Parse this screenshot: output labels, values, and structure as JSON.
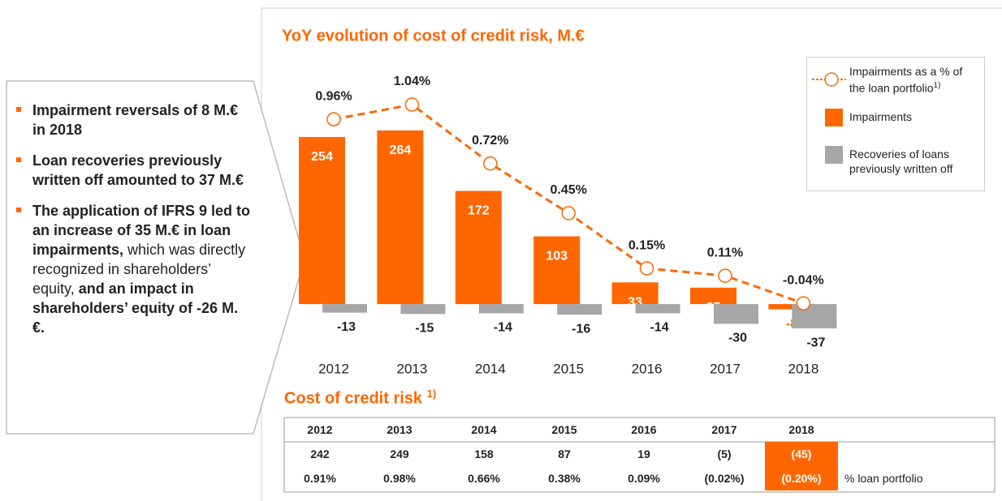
{
  "callout": {
    "bullets": [
      [
        {
          "text": "Impairment reversals of 8 M.€ in 2018",
          "bold": true
        }
      ],
      [
        {
          "text": "Loan recoveries previously written off amounted to 37 M.€",
          "bold": true
        }
      ],
      [
        {
          "text": "The application of IFRS 9 led to an increase of 35 M.€ in loan impairments,",
          "bold": true
        },
        {
          "text": " which was directly recognized in shareholders’ equity,",
          "bold": false
        },
        {
          "text": " and an impact in shareholders’ equity of -26 M.€.",
          "bold": true
        }
      ]
    ]
  },
  "chart_data": {
    "type": "bar",
    "title": "YoY evolution of cost of credit risk, M.€",
    "categories": [
      "2012",
      "2013",
      "2014",
      "2015",
      "2016",
      "2017",
      "2018"
    ],
    "ylim": [
      -80,
      376
    ],
    "y2lim": [
      -0.33,
      1.3
    ],
    "series": [
      {
        "name": "Impairments as a % of the loan portfolio",
        "footnote": "1)",
        "type": "line",
        "axis": "y2",
        "color": "#ff6600",
        "values": [
          0.96,
          1.04,
          0.72,
          0.45,
          0.15,
          0.11,
          -0.04
        ],
        "value_labels": [
          "0.96%",
          "1.04%",
          "0.72%",
          "0.45%",
          "0.15%",
          "0.11%",
          "-0.04%"
        ]
      },
      {
        "name": "Impairments",
        "type": "bar",
        "color": "#ff6600",
        "values": [
          254,
          264,
          172,
          103,
          33,
          25,
          -8
        ]
      },
      {
        "name": "Recoveries of loans previously written off",
        "type": "bar",
        "color": "#a6a6a6",
        "values": [
          -13,
          -15,
          -14,
          -16,
          -14,
          -30,
          -37
        ]
      }
    ]
  },
  "table": {
    "title": "Cost of credit risk",
    "title_note": "1)",
    "highlight_column": 6,
    "columns": [
      "2012",
      "2013",
      "2014",
      "2015",
      "2016",
      "2017",
      "2018"
    ],
    "rows": [
      {
        "cells": [
          "242",
          "249",
          "158",
          "87",
          "19",
          "(5)",
          "(45)"
        ]
      },
      {
        "cells": [
          "0.91%",
          "0.98%",
          "0.66%",
          "0.38%",
          "0.09%",
          "(0.02%)",
          "(0.20%)"
        ],
        "label": "% loan portfolio"
      }
    ]
  }
}
